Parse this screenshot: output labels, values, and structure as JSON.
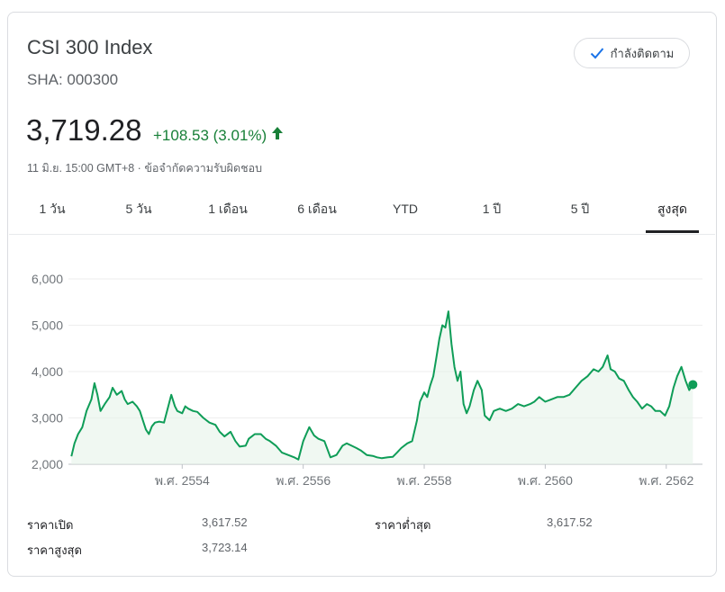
{
  "header": {
    "title": "CSI 300 Index",
    "ticker": "SHA: 000300",
    "follow_label": "กำลังติดตาม",
    "follow_icon": "check-icon"
  },
  "quote": {
    "price": "3,719.28",
    "change": "+108.53 (3.01%)",
    "change_icon": "arrow-up-icon",
    "change_color": "#188038",
    "timestamp": "11 มิ.ย. 15:00 GMT+8 · ข้อจำกัดความรับผิดชอบ"
  },
  "tabs": [
    {
      "label": "1 วัน",
      "active": false
    },
    {
      "label": "5 วัน",
      "active": false
    },
    {
      "label": "1 เดือน",
      "active": false
    },
    {
      "label": "6 เดือน",
      "active": false
    },
    {
      "label": "YTD",
      "active": false
    },
    {
      "label": "1 ปี",
      "active": false
    },
    {
      "label": "5 ปี",
      "active": false
    },
    {
      "label": "สูงสุด",
      "active": true
    }
  ],
  "stats": {
    "open_label": "ราคาเปิด",
    "open_value": "3,617.52",
    "low_label": "ราคาต่ำสุด",
    "low_value": "3,617.52",
    "high_label": "ราคาสูงสุด",
    "high_value": "3,723.14"
  },
  "chart_data": {
    "type": "area",
    "line_color": "#0f9d58",
    "fill_color": "#e6f4ea",
    "grid": true,
    "ylim": [
      2000,
      6000
    ],
    "yticks": [
      "2,000",
      "3,000",
      "4,000",
      "5,000",
      "6,000"
    ],
    "ytick_values": [
      2000,
      3000,
      4000,
      5000,
      6000
    ],
    "xtick_labels": [
      "พ.ศ. 2554",
      "พ.ศ. 2556",
      "พ.ศ. 2558",
      "พ.ศ. 2560",
      "พ.ศ. 2562"
    ],
    "xtick_values": [
      2011,
      2013,
      2015,
      2017,
      2019
    ],
    "xlim": [
      2009.15,
      2019.45
    ],
    "series": [
      {
        "points": [
          [
            2009.17,
            2170
          ],
          [
            2009.22,
            2450
          ],
          [
            2009.28,
            2650
          ],
          [
            2009.35,
            2800
          ],
          [
            2009.42,
            3150
          ],
          [
            2009.5,
            3400
          ],
          [
            2009.55,
            3750
          ],
          [
            2009.6,
            3500
          ],
          [
            2009.65,
            3150
          ],
          [
            2009.72,
            3300
          ],
          [
            2009.8,
            3450
          ],
          [
            2009.85,
            3650
          ],
          [
            2009.92,
            3500
          ],
          [
            2010.0,
            3580
          ],
          [
            2010.05,
            3400
          ],
          [
            2010.1,
            3300
          ],
          [
            2010.18,
            3350
          ],
          [
            2010.25,
            3250
          ],
          [
            2010.3,
            3150
          ],
          [
            2010.35,
            2950
          ],
          [
            2010.4,
            2750
          ],
          [
            2010.45,
            2650
          ],
          [
            2010.5,
            2820
          ],
          [
            2010.55,
            2900
          ],
          [
            2010.62,
            2920
          ],
          [
            2010.7,
            2900
          ],
          [
            2010.78,
            3300
          ],
          [
            2010.82,
            3500
          ],
          [
            2010.88,
            3250
          ],
          [
            2010.92,
            3150
          ],
          [
            2011.0,
            3100
          ],
          [
            2011.05,
            3250
          ],
          [
            2011.1,
            3200
          ],
          [
            2011.18,
            3150
          ],
          [
            2011.25,
            3130
          ],
          [
            2011.35,
            3000
          ],
          [
            2011.45,
            2900
          ],
          [
            2011.55,
            2850
          ],
          [
            2011.62,
            2700
          ],
          [
            2011.7,
            2600
          ],
          [
            2011.8,
            2700
          ],
          [
            2011.88,
            2500
          ],
          [
            2011.95,
            2380
          ],
          [
            2012.05,
            2400
          ],
          [
            2012.1,
            2550
          ],
          [
            2012.15,
            2600
          ],
          [
            2012.2,
            2650
          ],
          [
            2012.3,
            2650
          ],
          [
            2012.38,
            2550
          ],
          [
            2012.45,
            2500
          ],
          [
            2012.55,
            2400
          ],
          [
            2012.65,
            2250
          ],
          [
            2012.75,
            2200
          ],
          [
            2012.85,
            2150
          ],
          [
            2012.92,
            2100
          ],
          [
            2013.0,
            2500
          ],
          [
            2013.05,
            2650
          ],
          [
            2013.1,
            2800
          ],
          [
            2013.18,
            2620
          ],
          [
            2013.25,
            2550
          ],
          [
            2013.35,
            2500
          ],
          [
            2013.45,
            2150
          ],
          [
            2013.55,
            2200
          ],
          [
            2013.65,
            2400
          ],
          [
            2013.72,
            2450
          ],
          [
            2013.8,
            2400
          ],
          [
            2013.88,
            2350
          ],
          [
            2013.95,
            2300
          ],
          [
            2014.05,
            2200
          ],
          [
            2014.15,
            2180
          ],
          [
            2014.22,
            2150
          ],
          [
            2014.3,
            2130
          ],
          [
            2014.4,
            2150
          ],
          [
            2014.48,
            2160
          ],
          [
            2014.55,
            2250
          ],
          [
            2014.62,
            2350
          ],
          [
            2014.72,
            2450
          ],
          [
            2014.8,
            2500
          ],
          [
            2014.88,
            2950
          ],
          [
            2014.93,
            3350
          ],
          [
            2015.0,
            3550
          ],
          [
            2015.05,
            3450
          ],
          [
            2015.1,
            3700
          ],
          [
            2015.15,
            3900
          ],
          [
            2015.2,
            4300
          ],
          [
            2015.25,
            4700
          ],
          [
            2015.3,
            5000
          ],
          [
            2015.35,
            4950
          ],
          [
            2015.4,
            5300
          ],
          [
            2015.45,
            4600
          ],
          [
            2015.5,
            4100
          ],
          [
            2015.55,
            3800
          ],
          [
            2015.6,
            4000
          ],
          [
            2015.65,
            3300
          ],
          [
            2015.7,
            3100
          ],
          [
            2015.75,
            3250
          ],
          [
            2015.82,
            3600
          ],
          [
            2015.88,
            3800
          ],
          [
            2015.95,
            3600
          ],
          [
            2016.0,
            3050
          ],
          [
            2016.08,
            2950
          ],
          [
            2016.15,
            3150
          ],
          [
            2016.25,
            3200
          ],
          [
            2016.35,
            3150
          ],
          [
            2016.45,
            3200
          ],
          [
            2016.55,
            3300
          ],
          [
            2016.65,
            3250
          ],
          [
            2016.75,
            3300
          ],
          [
            2016.82,
            3350
          ],
          [
            2016.9,
            3450
          ],
          [
            2017.0,
            3350
          ],
          [
            2017.1,
            3400
          ],
          [
            2017.2,
            3450
          ],
          [
            2017.3,
            3450
          ],
          [
            2017.4,
            3500
          ],
          [
            2017.5,
            3650
          ],
          [
            2017.6,
            3800
          ],
          [
            2017.7,
            3900
          ],
          [
            2017.8,
            4050
          ],
          [
            2017.88,
            4000
          ],
          [
            2017.95,
            4100
          ],
          [
            2018.03,
            4350
          ],
          [
            2018.08,
            4050
          ],
          [
            2018.15,
            4000
          ],
          [
            2018.22,
            3850
          ],
          [
            2018.3,
            3800
          ],
          [
            2018.38,
            3600
          ],
          [
            2018.45,
            3450
          ],
          [
            2018.52,
            3350
          ],
          [
            2018.6,
            3200
          ],
          [
            2018.68,
            3300
          ],
          [
            2018.75,
            3250
          ],
          [
            2018.82,
            3150
          ],
          [
            2018.9,
            3150
          ],
          [
            2018.98,
            3050
          ],
          [
            2019.05,
            3250
          ],
          [
            2019.12,
            3650
          ],
          [
            2019.18,
            3900
          ],
          [
            2019.25,
            4100
          ],
          [
            2019.32,
            3800
          ],
          [
            2019.38,
            3600
          ],
          [
            2019.44,
            3719
          ]
        ]
      }
    ]
  }
}
